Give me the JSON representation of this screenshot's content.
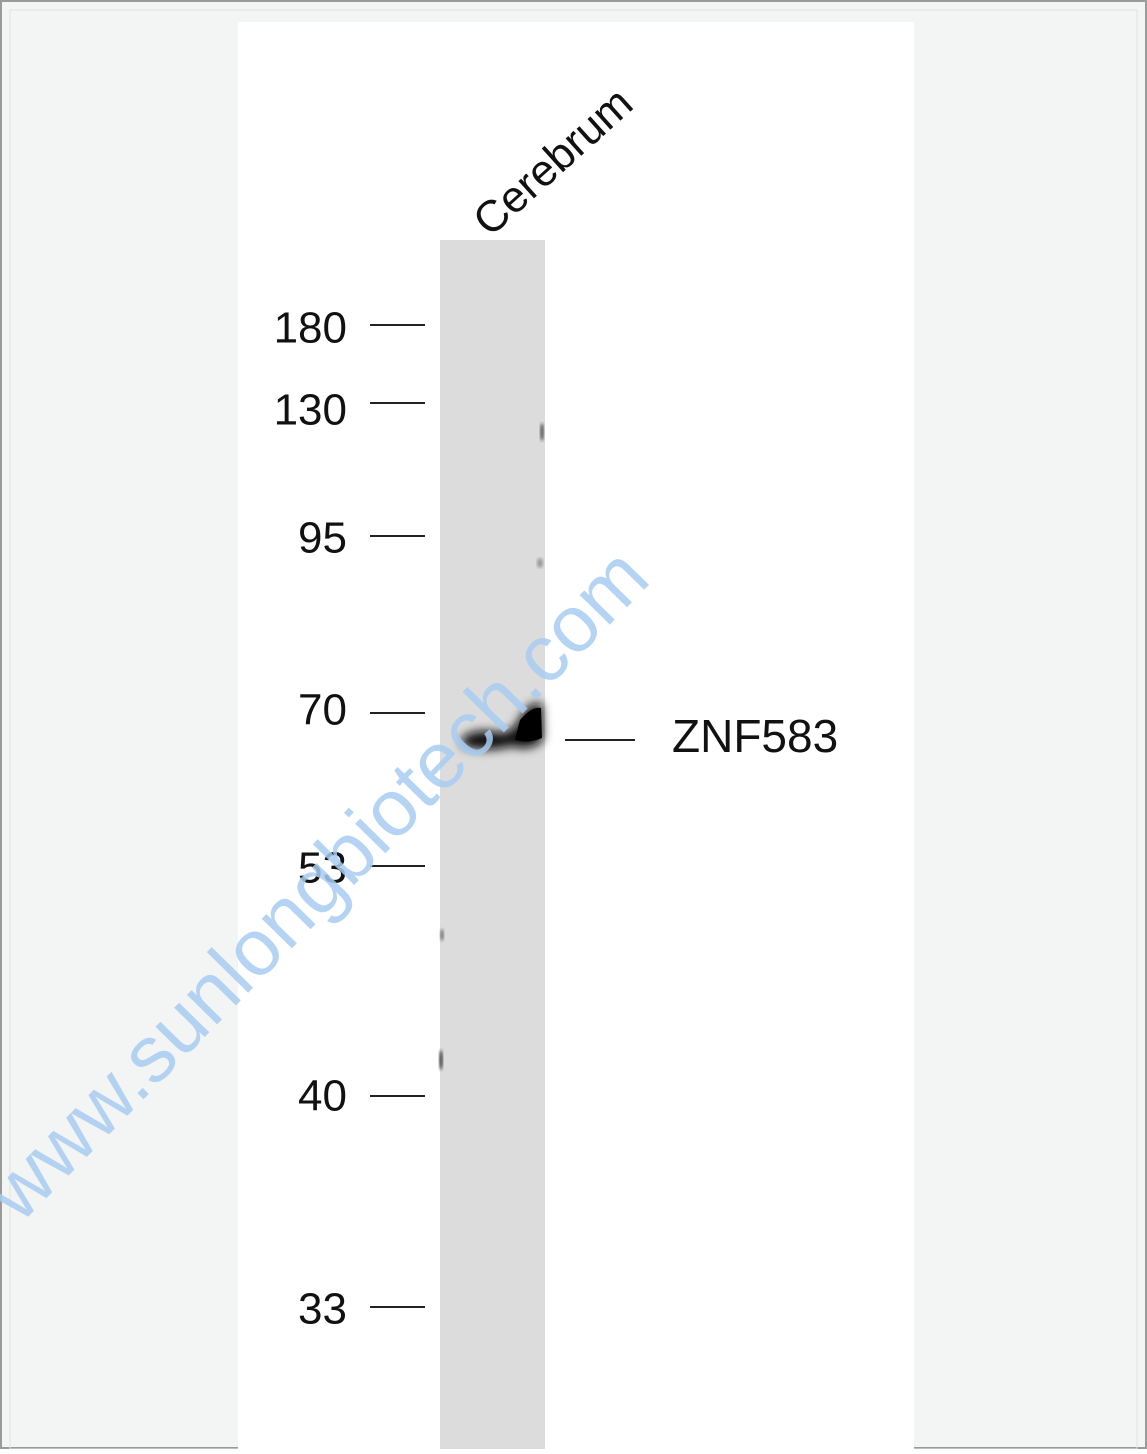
{
  "lane_label": "Cerebrum",
  "markers": [
    "180",
    "130",
    "95",
    "70",
    "53",
    "40",
    "33"
  ],
  "band_label": "ZNF583",
  "watermark": "www.sunlongbiotech.com"
}
